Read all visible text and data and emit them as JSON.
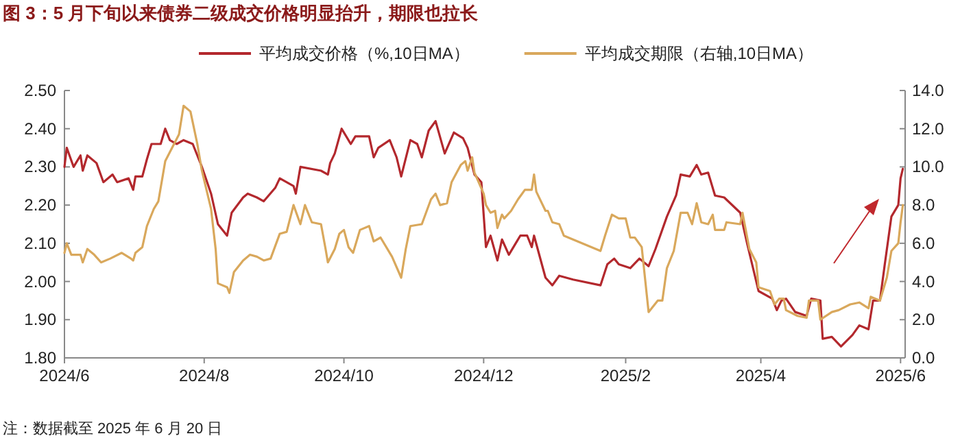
{
  "chart_data": {
    "type": "line",
    "title": "图 3：5 月下旬以来债券二级成交价格明显抬升，期限也拉长",
    "annotations": [
      "注：数据截至 2025 年 6 月 20 日"
    ],
    "legend": "top",
    "xlim": [
      "2024-06-01",
      "2025-06-03"
    ],
    "xticks": [
      {
        "value": "2024-06-01",
        "label": "2024/6"
      },
      {
        "value": "2024-08-01",
        "label": "2024/8"
      },
      {
        "value": "2024-10-01",
        "label": "2024/10"
      },
      {
        "value": "2024-12-01",
        "label": "2024/12"
      },
      {
        "value": "2025-02-01",
        "label": "2025/2"
      },
      {
        "value": "2025-04-01",
        "label": "2025/4"
      },
      {
        "value": "2025-06-01",
        "label": "2025/6"
      }
    ],
    "ylim": [
      1.8,
      2.5
    ],
    "yticks": [
      {
        "value": 1.8,
        "label": "1.80"
      },
      {
        "value": 1.9,
        "label": "1.90"
      },
      {
        "value": 2.0,
        "label": "2.00"
      },
      {
        "value": 2.1,
        "label": "2.10"
      },
      {
        "value": 2.2,
        "label": "2.20"
      },
      {
        "value": 2.3,
        "label": "2.30"
      },
      {
        "value": 2.4,
        "label": "2.40"
      },
      {
        "value": 2.5,
        "label": "2.50"
      }
    ],
    "y2lim": [
      0,
      14
    ],
    "y2ticks": [
      {
        "value": 0,
        "label": "0.0"
      },
      {
        "value": 2,
        "label": "2.0"
      },
      {
        "value": 4,
        "label": "4.0"
      },
      {
        "value": 6,
        "label": "6.0"
      },
      {
        "value": 8,
        "label": "8.0"
      },
      {
        "value": 10,
        "label": "10.0"
      },
      {
        "value": 12,
        "label": "12.0"
      },
      {
        "value": 14,
        "label": "14.0"
      }
    ],
    "series": [
      {
        "name": "平均成交价格（%,10日MA）",
        "color": "#b3282d",
        "x": [
          "2024-06-01",
          "2024-06-02",
          "2024-06-05",
          "2024-06-08",
          "2024-06-09",
          "2024-06-11",
          "2024-06-15",
          "2024-06-18",
          "2024-06-22",
          "2024-06-24",
          "2024-06-29",
          "2024-07-01",
          "2024-07-02",
          "2024-07-05",
          "2024-07-07",
          "2024-07-09",
          "2024-07-13",
          "2024-07-15",
          "2024-07-17",
          "2024-07-20",
          "2024-07-23",
          "2024-07-27",
          "2024-07-31",
          "2024-08-04",
          "2024-08-07",
          "2024-08-11",
          "2024-08-13",
          "2024-08-18",
          "2024-08-20",
          "2024-08-24",
          "2024-08-27",
          "2024-09-01",
          "2024-09-03",
          "2024-09-09",
          "2024-09-10",
          "2024-09-12",
          "2024-09-21",
          "2024-09-24",
          "2024-09-25",
          "2024-09-27",
          "2024-09-30",
          "2024-10-04",
          "2024-10-06",
          "2024-10-12",
          "2024-10-14",
          "2024-10-16",
          "2024-10-21",
          "2024-10-24",
          "2024-10-26",
          "2024-10-30",
          "2024-11-02",
          "2024-11-04",
          "2024-11-07",
          "2024-11-10",
          "2024-11-14",
          "2024-11-18",
          "2024-11-22",
          "2024-11-24",
          "2024-11-27",
          "2024-11-30",
          "2024-12-02",
          "2024-12-04",
          "2024-12-07",
          "2024-12-09",
          "2024-12-12",
          "2024-12-15",
          "2024-12-17",
          "2024-12-20",
          "2024-12-22",
          "2024-12-23",
          "2024-12-28",
          "2024-12-31",
          "2025-01-03",
          "2025-01-09",
          "2025-01-21",
          "2025-01-24",
          "2025-01-27",
          "2025-01-29",
          "2025-02-03",
          "2025-02-07",
          "2025-02-11",
          "2025-02-14",
          "2025-02-19",
          "2025-02-23",
          "2025-02-25",
          "2025-03-01",
          "2025-03-04",
          "2025-03-06",
          "2025-03-09",
          "2025-03-12",
          "2025-03-16",
          "2025-03-23",
          "2025-03-26",
          "2025-03-31",
          "2025-04-06",
          "2025-04-08",
          "2025-04-10",
          "2025-04-12",
          "2025-04-16",
          "2025-04-21",
          "2025-04-23",
          "2025-04-27",
          "2025-04-28",
          "2025-05-02",
          "2025-05-06",
          "2025-05-11",
          "2025-05-14",
          "2025-05-18",
          "2025-05-20",
          "2025-05-23",
          "2025-05-25",
          "2025-05-28",
          "2025-05-31",
          "2025-06-01",
          "2025-06-02"
        ],
        "values": [
          2.3,
          2.35,
          2.3,
          2.33,
          2.29,
          2.33,
          2.31,
          2.26,
          2.28,
          2.26,
          2.27,
          2.24,
          2.275,
          2.275,
          2.32,
          2.36,
          2.36,
          2.4,
          2.37,
          2.36,
          2.37,
          2.36,
          2.3,
          2.23,
          2.15,
          2.12,
          2.18,
          2.22,
          2.23,
          2.22,
          2.21,
          2.245,
          2.27,
          2.25,
          2.23,
          2.3,
          2.29,
          2.28,
          2.31,
          2.335,
          2.4,
          2.36,
          2.38,
          2.38,
          2.325,
          2.35,
          2.37,
          2.325,
          2.275,
          2.37,
          2.36,
          2.325,
          2.395,
          2.42,
          2.335,
          2.39,
          2.375,
          2.35,
          2.28,
          2.26,
          2.09,
          2.12,
          2.055,
          2.11,
          2.07,
          2.1,
          2.12,
          2.12,
          2.09,
          2.12,
          2.01,
          1.99,
          2.015,
          2.005,
          1.99,
          2.045,
          2.06,
          2.045,
          2.035,
          2.06,
          2.04,
          2.085,
          2.17,
          2.225,
          2.28,
          2.275,
          2.305,
          2.28,
          2.285,
          2.225,
          2.22,
          2.18,
          2.1,
          1.975,
          1.955,
          1.925,
          1.95,
          1.955,
          1.92,
          1.91,
          1.955,
          1.95,
          1.85,
          1.855,
          1.83,
          1.86,
          1.885,
          1.875,
          1.95,
          1.95,
          2.04,
          2.17,
          2.2,
          2.27,
          2.295
        ]
      },
      {
        "name": "平均成交期限（右轴,10日MA）",
        "color": "#d9a85c",
        "axis": "y2",
        "x": [
          "2024-06-01",
          "2024-06-02",
          "2024-06-04",
          "2024-06-08",
          "2024-06-09",
          "2024-06-11",
          "2024-06-14",
          "2024-06-17",
          "2024-06-21",
          "2024-06-26",
          "2024-06-30",
          "2024-07-01",
          "2024-07-02",
          "2024-07-05",
          "2024-07-07",
          "2024-07-10",
          "2024-07-12",
          "2024-07-15",
          "2024-07-18",
          "2024-07-21",
          "2024-07-23",
          "2024-07-26",
          "2024-07-29",
          "2024-07-31",
          "2024-08-04",
          "2024-08-06",
          "2024-08-07",
          "2024-08-11",
          "2024-08-12",
          "2024-08-14",
          "2024-08-18",
          "2024-08-21",
          "2024-08-24",
          "2024-08-27",
          "2024-08-30",
          "2024-09-03",
          "2024-09-06",
          "2024-09-09",
          "2024-09-12",
          "2024-09-14",
          "2024-09-17",
          "2024-09-21",
          "2024-09-23",
          "2024-09-24",
          "2024-09-27",
          "2024-09-29",
          "2024-10-01",
          "2024-10-03",
          "2024-10-05",
          "2024-10-08",
          "2024-10-12",
          "2024-10-14",
          "2024-10-17",
          "2024-10-22",
          "2024-10-26",
          "2024-10-28",
          "2024-10-30",
          "2024-11-04",
          "2024-11-08",
          "2024-11-10",
          "2024-11-12",
          "2024-11-15",
          "2024-11-17",
          "2024-11-21",
          "2024-11-23",
          "2024-11-24",
          "2024-11-26",
          "2024-11-27",
          "2024-12-01",
          "2024-12-02",
          "2024-12-04",
          "2024-12-06",
          "2024-12-07",
          "2024-12-09",
          "2024-12-10",
          "2024-12-13",
          "2024-12-16",
          "2024-12-19",
          "2024-12-22",
          "2024-12-23",
          "2024-12-24",
          "2024-12-28",
          "2024-12-29",
          "2024-12-31",
          "2025-01-03",
          "2025-01-05",
          "2025-01-21",
          "2025-01-23",
          "2025-01-26",
          "2025-01-29",
          "2025-02-01",
          "2025-02-03",
          "2025-02-05",
          "2025-02-08",
          "2025-02-11",
          "2025-02-15",
          "2025-02-17",
          "2025-02-19",
          "2025-02-22",
          "2025-02-25",
          "2025-02-28",
          "2025-03-02",
          "2025-03-04",
          "2025-03-06",
          "2025-03-09",
          "2025-03-11",
          "2025-03-12",
          "2025-03-16",
          "2025-03-17",
          "2025-03-23",
          "2025-03-24",
          "2025-03-27",
          "2025-03-30",
          "2025-03-31",
          "2025-04-05",
          "2025-04-07",
          "2025-04-09",
          "2025-04-11",
          "2025-04-12",
          "2025-04-17",
          "2025-04-21",
          "2025-04-22",
          "2025-04-26",
          "2025-04-27",
          "2025-05-02",
          "2025-05-05",
          "2025-05-10",
          "2025-05-14",
          "2025-05-18",
          "2025-05-19",
          "2025-05-23",
          "2025-05-26",
          "2025-05-28",
          "2025-05-31",
          "2025-06-01",
          "2025-06-02"
        ],
        "values": [
          5.5,
          6.0,
          5.4,
          5.4,
          5.0,
          5.7,
          5.4,
          5.0,
          5.2,
          5.5,
          5.2,
          5.1,
          5.5,
          5.8,
          6.9,
          7.8,
          8.2,
          10.3,
          11.0,
          11.7,
          13.2,
          12.9,
          11.2,
          9.8,
          7.8,
          5.7,
          3.9,
          3.7,
          3.4,
          4.5,
          5.1,
          5.4,
          5.3,
          5.1,
          5.2,
          6.5,
          6.6,
          8.0,
          7.0,
          8.0,
          7.1,
          7.0,
          5.7,
          5.0,
          5.7,
          6.5,
          6.7,
          5.8,
          5.5,
          6.7,
          6.9,
          6.1,
          6.3,
          5.3,
          4.2,
          5.7,
          6.9,
          7.0,
          8.3,
          8.6,
          8.0,
          8.1,
          9.2,
          10.1,
          10.3,
          9.8,
          10.5,
          9.7,
          8.6,
          8.0,
          7.6,
          7.7,
          6.8,
          7.5,
          7.3,
          7.7,
          8.3,
          8.8,
          8.8,
          9.6,
          8.7,
          7.7,
          7.7,
          7.1,
          7.0,
          6.4,
          5.6,
          6.4,
          7.5,
          7.3,
          7.3,
          6.3,
          6.3,
          5.8,
          2.4,
          3.0,
          3.0,
          4.7,
          5.6,
          7.6,
          7.6,
          7.0,
          8.1,
          7.1,
          7.0,
          7.5,
          6.7,
          6.7,
          7.1,
          7.0,
          7.6,
          5.7,
          5.0,
          3.7,
          3.5,
          2.8,
          3.1,
          3.1,
          2.5,
          2.2,
          2.1,
          3.0,
          3.0,
          2.0,
          2.4,
          2.5,
          2.8,
          2.9,
          2.6,
          3.2,
          3.0,
          4.2,
          5.6,
          6.0,
          7.1,
          8.0
        ]
      }
    ]
  }
}
